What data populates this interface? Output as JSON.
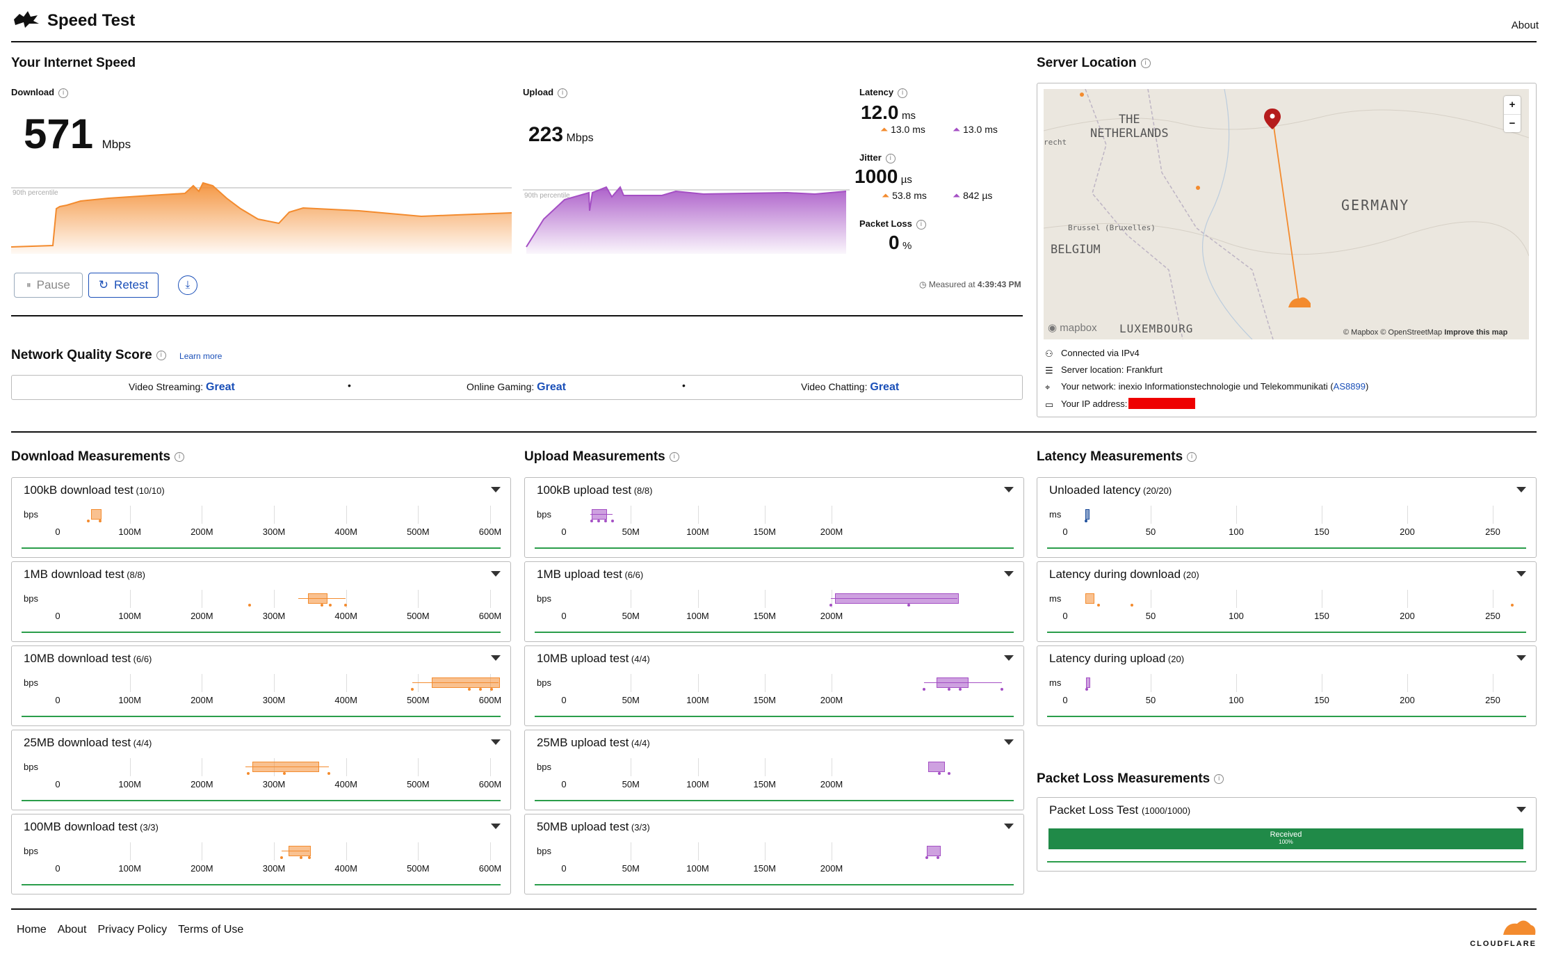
{
  "header": {
    "title": "Speed Test",
    "about": "About"
  },
  "speed": {
    "section_title": "Your Internet Speed",
    "download_label": "Download",
    "download_value": "571",
    "download_unit": "Mbps",
    "upload_label": "Upload",
    "upload_value": "223",
    "upload_unit": "Mbps",
    "percentile_label": "90th percentile",
    "latency_label": "Latency",
    "latency_value": "12.0",
    "latency_unit": "ms",
    "latency_down": "13.0 ms",
    "latency_up": "13.0 ms",
    "jitter_label": "Jitter",
    "jitter_value": "1000",
    "jitter_unit": "µs",
    "jitter_down": "53.8 ms",
    "jitter_up": "842 µs",
    "packet_loss_label": "Packet Loss",
    "packet_loss_value": "0",
    "packet_loss_unit": "%",
    "measured_prefix": "Measured at",
    "measured_time": "4:39:43 PM",
    "pause_label": "Pause",
    "retest_label": "Retest"
  },
  "server": {
    "section_title": "Server Location",
    "map_labels": {
      "nl": "THE\nNETHERLANDS",
      "de": "GERMANY",
      "be": "BELGIUM",
      "lu": "LUXEMBOURG",
      "brussel": "Brussel (Bruxelles)",
      "utrecht": "recht"
    },
    "attribution": "© Mapbox © OpenStreetMap",
    "improve": "Improve this map",
    "mapbox": "mapbox",
    "zoom_in": "+",
    "zoom_out": "−",
    "connected": "Connected via IPv4",
    "location": "Server location: Frankfurt",
    "network_prefix": "Your network: inexio Informationstechnologie und Telekommunikati (",
    "network_as": "AS8899",
    "network_suffix": ")",
    "ip_label": "Your IP address:"
  },
  "quality": {
    "title": "Network Quality Score",
    "learn_more": "Learn more",
    "items": [
      {
        "label": "Video Streaming:",
        "value": "Great"
      },
      {
        "label": "Online Gaming:",
        "value": "Great"
      },
      {
        "label": "Video Chatting:",
        "value": "Great"
      }
    ]
  },
  "download_section": {
    "title": "Download Measurements",
    "unit": "bps",
    "ticks": [
      "0",
      "100M",
      "200M",
      "300M",
      "400M",
      "500M",
      "600M"
    ],
    "cards": [
      {
        "title": "100kB download test",
        "count": "(10/10)"
      },
      {
        "title": "1MB download test",
        "count": "(8/8)"
      },
      {
        "title": "10MB download test",
        "count": "(6/6)"
      },
      {
        "title": "25MB download test",
        "count": "(4/4)"
      },
      {
        "title": "100MB download test",
        "count": "(3/3)"
      }
    ]
  },
  "upload_section": {
    "title": "Upload Measurements",
    "unit": "bps",
    "ticks": [
      "0",
      "50M",
      "100M",
      "150M",
      "200M"
    ],
    "cards": [
      {
        "title": "100kB upload test",
        "count": "(8/8)"
      },
      {
        "title": "1MB upload test",
        "count": "(6/6)"
      },
      {
        "title": "10MB upload test",
        "count": "(4/4)"
      },
      {
        "title": "25MB upload test",
        "count": "(4/4)"
      },
      {
        "title": "50MB upload test",
        "count": "(3/3)"
      }
    ]
  },
  "latency_section": {
    "title": "Latency Measurements",
    "unit": "ms",
    "ticks": [
      "0",
      "50",
      "100",
      "150",
      "200",
      "250"
    ],
    "cards": [
      {
        "title": "Unloaded latency",
        "count": "(20/20)"
      },
      {
        "title": "Latency during download",
        "count": "(20)"
      },
      {
        "title": "Latency during upload",
        "count": "(20)"
      }
    ]
  },
  "packet_section": {
    "title": "Packet Loss Measurements",
    "card_title": "Packet Loss Test",
    "card_count": "(1000/1000)",
    "bar_label": "Received",
    "bar_pct": "100%",
    "received_fraction": 1.0
  },
  "footer": {
    "links": [
      "Home",
      "About",
      "Privacy Policy",
      "Terms of Use"
    ],
    "brand": "CLOUDFLARE"
  },
  "colors": {
    "download": "#f38b2e",
    "upload": "#a44fc4",
    "latency": "#1f4f9c",
    "good": "#2a9d4a",
    "link": "#1a4fb8"
  }
}
